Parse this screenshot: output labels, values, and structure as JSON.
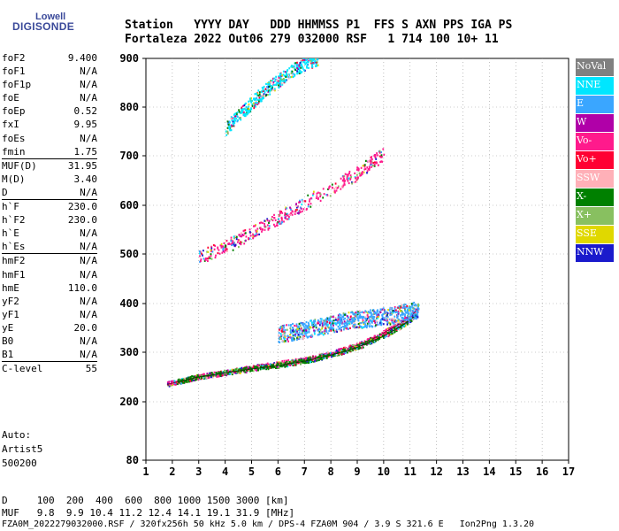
{
  "logo": {
    "line1": "Lowell",
    "line2": "DIGISONDE"
  },
  "header": {
    "row1": "Station   YYYY DAY   DDD HHMMSS P1  FFS S AXN PPS IGA PS",
    "row2": "Fortaleza 2022 Out06 279 032000 RSF   1 714 100 10+ 11"
  },
  "params": [
    {
      "label": "foF2",
      "value": "9.400",
      "sep": false
    },
    {
      "label": "foF1",
      "value": "N/A",
      "sep": false
    },
    {
      "label": "foF1p",
      "value": "N/A",
      "sep": false
    },
    {
      "label": "foE",
      "value": "N/A",
      "sep": false
    },
    {
      "label": "foEp",
      "value": "0.52",
      "sep": false
    },
    {
      "label": "fxI",
      "value": "9.95",
      "sep": false
    },
    {
      "label": "foEs",
      "value": "N/A",
      "sep": false
    },
    {
      "label": "fmin",
      "value": "1.75",
      "sep": false
    },
    {
      "label": "MUF(D)",
      "value": "31.95",
      "sep": true
    },
    {
      "label": "M(D)",
      "value": "3.40",
      "sep": false
    },
    {
      "label": "D",
      "value": "N/A",
      "sep": false
    },
    {
      "label": "h`F",
      "value": "230.0",
      "sep": true
    },
    {
      "label": "h`F2",
      "value": "230.0",
      "sep": false
    },
    {
      "label": "h`E",
      "value": "N/A",
      "sep": false
    },
    {
      "label": "h`Es",
      "value": "N/A",
      "sep": false
    },
    {
      "label": "hmF2",
      "value": "N/A",
      "sep": true
    },
    {
      "label": "hmF1",
      "value": "N/A",
      "sep": false
    },
    {
      "label": "hmE",
      "value": "110.0",
      "sep": false
    },
    {
      "label": "yF2",
      "value": "N/A",
      "sep": false
    },
    {
      "label": "yF1",
      "value": "N/A",
      "sep": false
    },
    {
      "label": "yE",
      "value": "20.0",
      "sep": false
    },
    {
      "label": "B0",
      "value": "N/A",
      "sep": false
    },
    {
      "label": "B1",
      "value": "N/A",
      "sep": false
    },
    {
      "label": "C-level",
      "value": "55",
      "sep": true
    }
  ],
  "extra": {
    "auto": "Auto:",
    "artist": "Artist5",
    "code": "500200"
  },
  "legend": [
    {
      "label": "NoVal",
      "color": "#808080"
    },
    {
      "label": "NNE",
      "color": "#00e6ff"
    },
    {
      "label": "E",
      "color": "#3aa6ff"
    },
    {
      "label": "W",
      "color": "#b000a8"
    },
    {
      "label": "Vo-",
      "color": "#ff1a8c"
    },
    {
      "label": "Vo+",
      "color": "#ff0033"
    },
    {
      "label": "SSW",
      "color": "#ffb0b8"
    },
    {
      "label": "X-",
      "color": "#008000"
    },
    {
      "label": "X+",
      "color": "#88c060"
    },
    {
      "label": "SSE",
      "color": "#e0d800"
    },
    {
      "label": "NNW",
      "color": "#1a1acc"
    }
  ],
  "footer": {
    "line1": "D     100  200  400  600  800 1000 1500 3000 [km]",
    "line2": "MUF   9.8  9.9 10.4 11.2 12.4 14.1 19.1 31.9 [MHz]",
    "line3": "FZA0M_2022279032000.RSF / 320fx256h 50 kHz 5.0 km / DPS-4 FZA0M 904 / 3.9 S 321.6 E   Ion2Png 1.3.20"
  },
  "chart_data": {
    "type": "scatter",
    "title": "",
    "xlabel": "",
    "ylabel": "",
    "xlim": [
      1,
      17
    ],
    "ylim": [
      80,
      900
    ],
    "x_ticks": [
      1,
      2,
      3,
      4,
      5,
      6,
      7,
      8,
      9,
      10,
      11,
      12,
      13,
      14,
      15,
      16,
      17
    ],
    "y_ticks": [
      80,
      200,
      300,
      400,
      500,
      600,
      700,
      800,
      900
    ],
    "grid": "dotted",
    "legend_position": "right",
    "series": [
      {
        "name": "Vo-",
        "description_trace": "F2 O-trace",
        "x": [
          1.8,
          2.5,
          3.0,
          3.5,
          4.0,
          4.5,
          5.0,
          5.5,
          6.0,
          6.5,
          7.0,
          7.5,
          8.0,
          8.5,
          9.0,
          9.5,
          10.0,
          10.5,
          11.0,
          11.3
        ],
        "y": [
          235,
          244,
          250,
          254,
          258,
          263,
          268,
          272,
          276,
          280,
          284,
          290,
          297,
          305,
          315,
          325,
          340,
          355,
          372,
          390
        ]
      },
      {
        "name": "X-",
        "x": [
          2.2,
          3.0,
          4.0,
          5.0,
          6.0,
          7.0,
          7.5,
          8.0,
          9.0,
          10.0,
          10.7,
          11.2
        ],
        "y": [
          240,
          250,
          258,
          266,
          273,
          282,
          288,
          294,
          310,
          333,
          355,
          375
        ]
      },
      {
        "name": "E",
        "x": [
          6.0,
          6.5,
          7.0,
          7.5,
          8.0,
          8.5,
          9.0,
          9.5,
          10.0,
          10.5,
          11.0,
          11.3
        ],
        "y": [
          330,
          336,
          340,
          346,
          352,
          358,
          362,
          364,
          368,
          372,
          378,
          382
        ]
      },
      {
        "name": "Vo-",
        "x": [
          3.0,
          4.0,
          5.0,
          6.0,
          7.0,
          8.0,
          9.0,
          10.0
        ],
        "y": [
          490,
          510,
          540,
          570,
          600,
          630,
          660,
          700
        ]
      },
      {
        "name": "NNE",
        "x": [
          4.0,
          4.5,
          5.0,
          5.5,
          6.0,
          6.5,
          7.0,
          7.5
        ],
        "y": [
          750,
          780,
          805,
          830,
          850,
          870,
          885,
          895
        ]
      }
    ]
  }
}
